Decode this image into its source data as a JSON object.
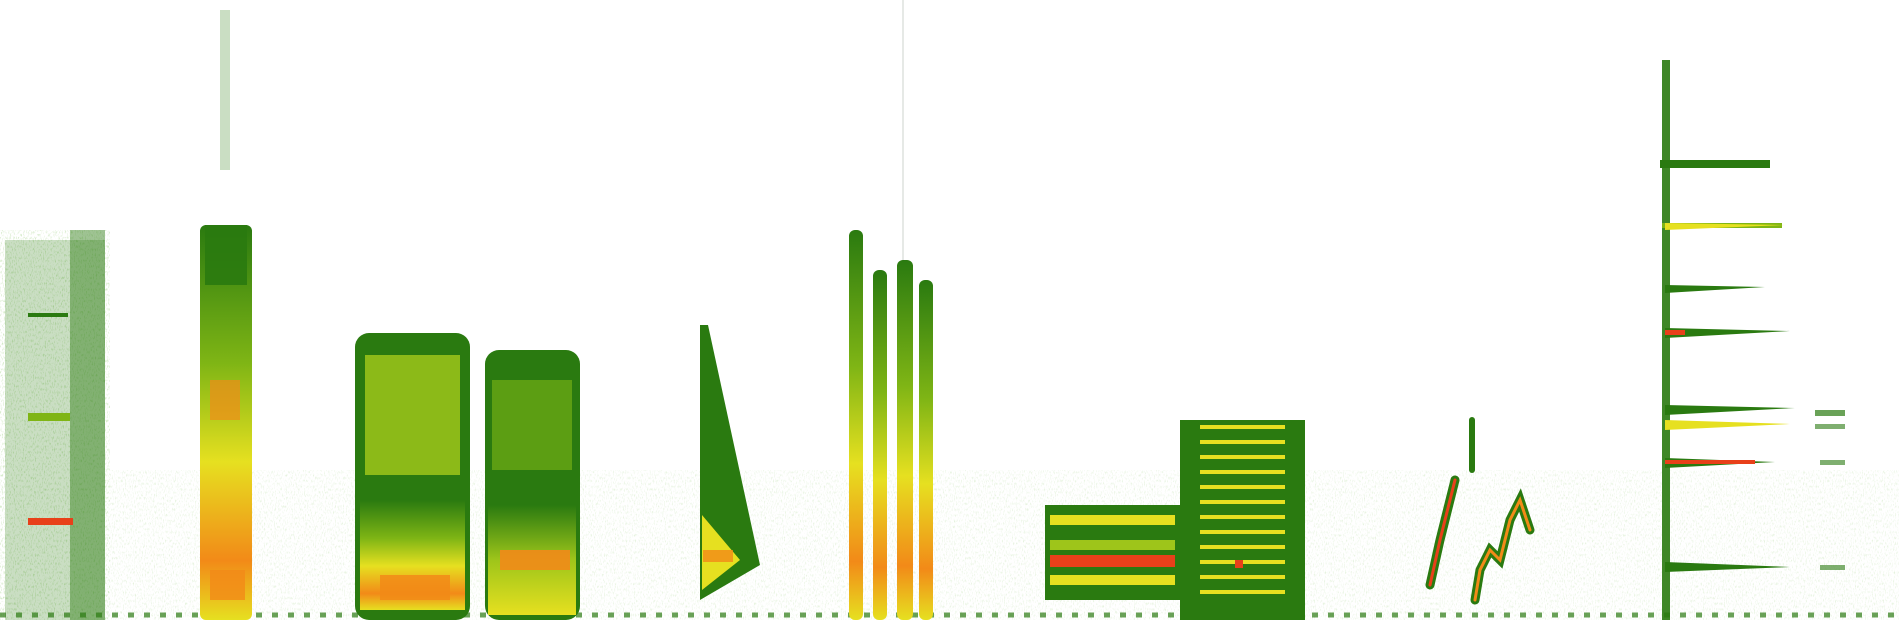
{
  "image": {
    "kind": "spectrogram",
    "background": "#ffffff",
    "colormap": [
      "#2a7a10",
      "#7fb515",
      "#e6e020",
      "#f28a18",
      "#e8401a"
    ],
    "labels_visible": false
  }
}
